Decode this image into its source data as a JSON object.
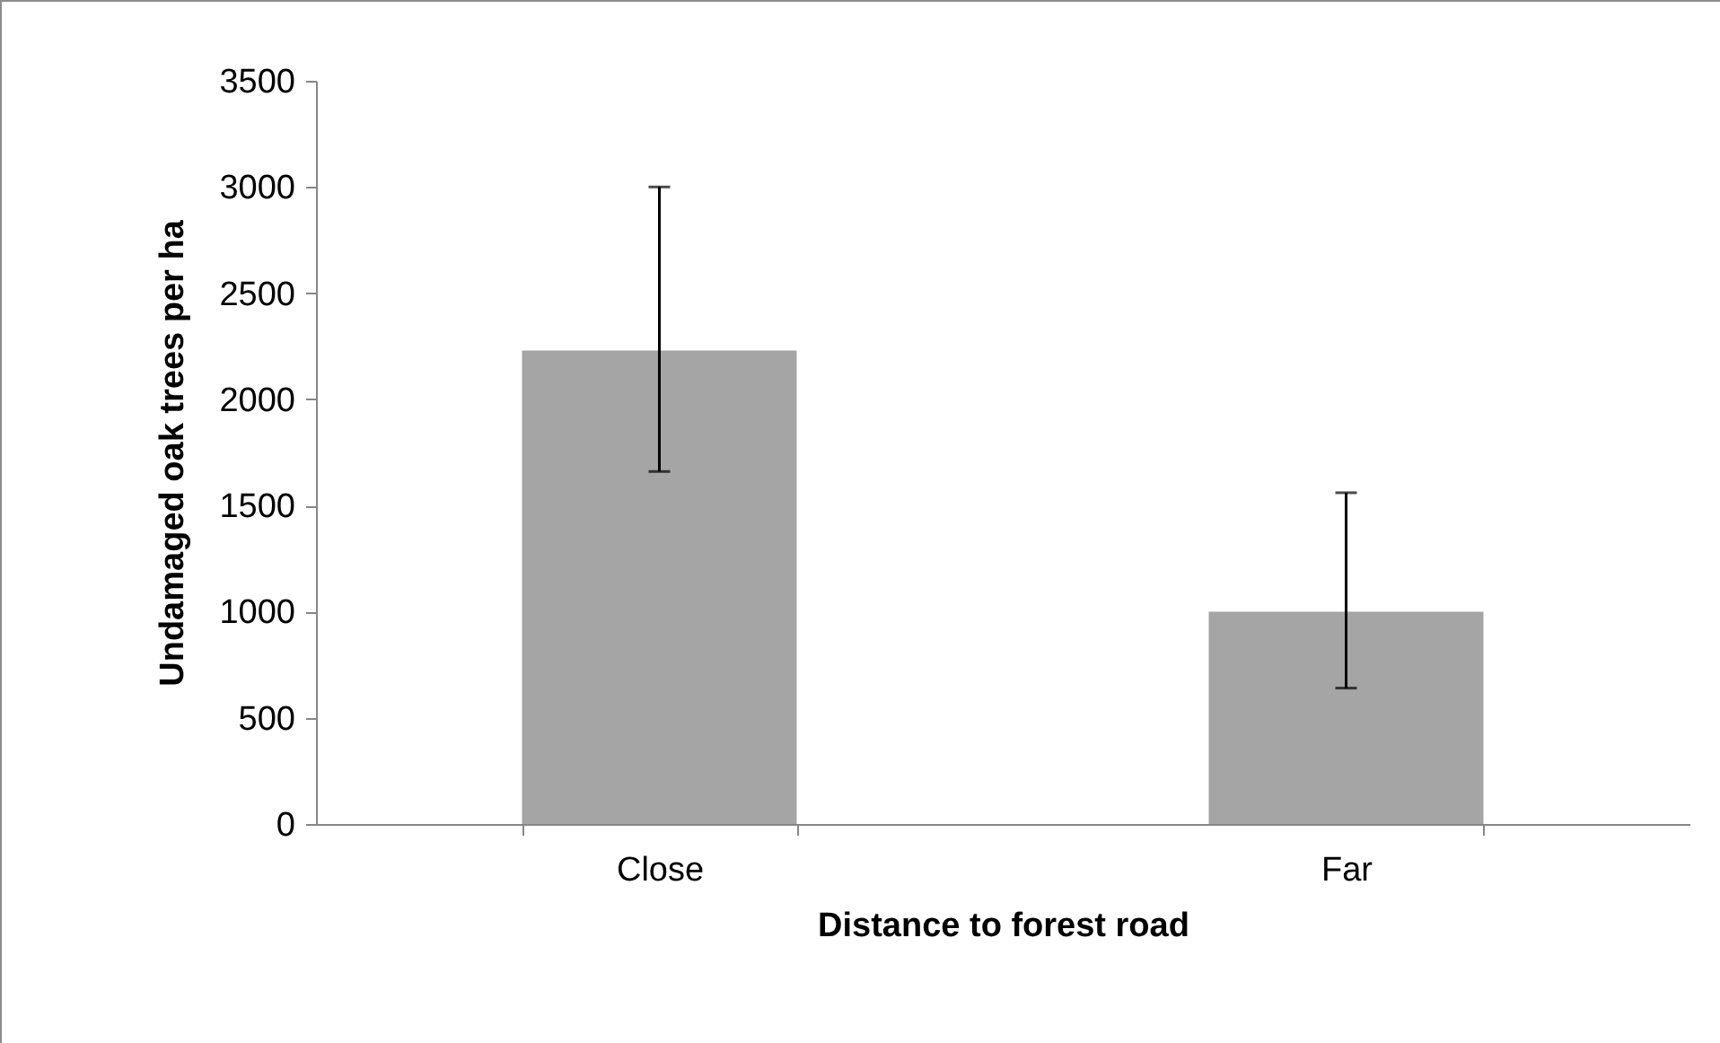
{
  "chart_data": {
    "type": "bar",
    "xlabel": "Distance to forest road",
    "ylabel": "Undamaged oak trees per ha",
    "categories": [
      "Close",
      "Far"
    ],
    "values": [
      2230,
      1000
    ],
    "errors": [
      [
        1660,
        3000
      ],
      [
        640,
        1560
      ]
    ],
    "color": "#a5a5a5",
    "ylim": [
      0,
      3500
    ],
    "yticks": [
      0,
      500,
      1000,
      1500,
      2000,
      2500,
      3000,
      3500
    ],
    "grid": false
  }
}
